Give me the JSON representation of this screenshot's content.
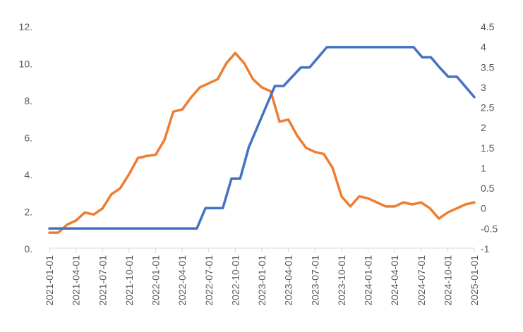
{
  "chart_data": {
    "type": "line",
    "title": "",
    "xlabel": "",
    "ylabel": "",
    "y2label": "",
    "ylim": [
      0,
      12
    ],
    "y2lim": [
      -1,
      4.5
    ],
    "yticks": [
      "0.",
      "2.",
      "4.",
      "6.",
      "8.",
      "10.",
      "12."
    ],
    "y2ticks": [
      "-1",
      "-0.5",
      "0",
      "0.5",
      "1",
      "1.5",
      "2",
      "2.5",
      "3",
      "3.5",
      "4",
      "4.5"
    ],
    "x_tick_labels": [
      "2021-01-01",
      "2021-04-01",
      "2021-07-01",
      "2021-10-01",
      "2022-01-01",
      "2022-04-01",
      "2022-07-01",
      "2022-10-01",
      "2023-01-01",
      "2023-04-01",
      "2023-07-01",
      "2023-10-01",
      "2024-01-01",
      "2024-04-01",
      "2024-07-01",
      "2024-10-01",
      "2025-01-01"
    ],
    "x_start": "2021-01-01",
    "x_end": "2025-01-01",
    "grid": false,
    "legend": "none",
    "series": [
      {
        "axis": "right",
        "color": "#ED7D31",
        "values": [
          -0.6,
          -0.6,
          -0.4,
          -0.3,
          -0.1,
          -0.15,
          0,
          0.35,
          0.5,
          0.85,
          1.25,
          1.3,
          1.33,
          1.7,
          2.4,
          2.45,
          2.75,
          3.0,
          3.1,
          3.2,
          3.6,
          3.85,
          3.6,
          3.2,
          3.0,
          2.9,
          2.15,
          2.2,
          1.8,
          1.5,
          1.4,
          1.35,
          1.0,
          0.3,
          0.05,
          0.3,
          0.25,
          0.15,
          0.05,
          0.05,
          0.15,
          0.1,
          0.15,
          0.0,
          -0.25,
          -0.1,
          0.0,
          0.1,
          0.15
        ]
      },
      {
        "axis": "left",
        "color": "#4472C4",
        "values": [
          1.1,
          1.1,
          1.1,
          1.1,
          1.1,
          1.1,
          1.1,
          1.1,
          1.1,
          1.1,
          1.1,
          1.1,
          1.1,
          1.1,
          1.1,
          1.1,
          1.1,
          1.1,
          2.2,
          2.2,
          2.2,
          3.8,
          3.8,
          5.5,
          6.6,
          7.7,
          8.8,
          8.8,
          9.3,
          9.8,
          9.8,
          10.35,
          10.9,
          10.9,
          10.9,
          10.9,
          10.9,
          10.9,
          10.9,
          10.9,
          10.9,
          10.9,
          10.9,
          10.35,
          10.35,
          9.8,
          9.3,
          9.3,
          8.75,
          8.2
        ]
      }
    ]
  }
}
